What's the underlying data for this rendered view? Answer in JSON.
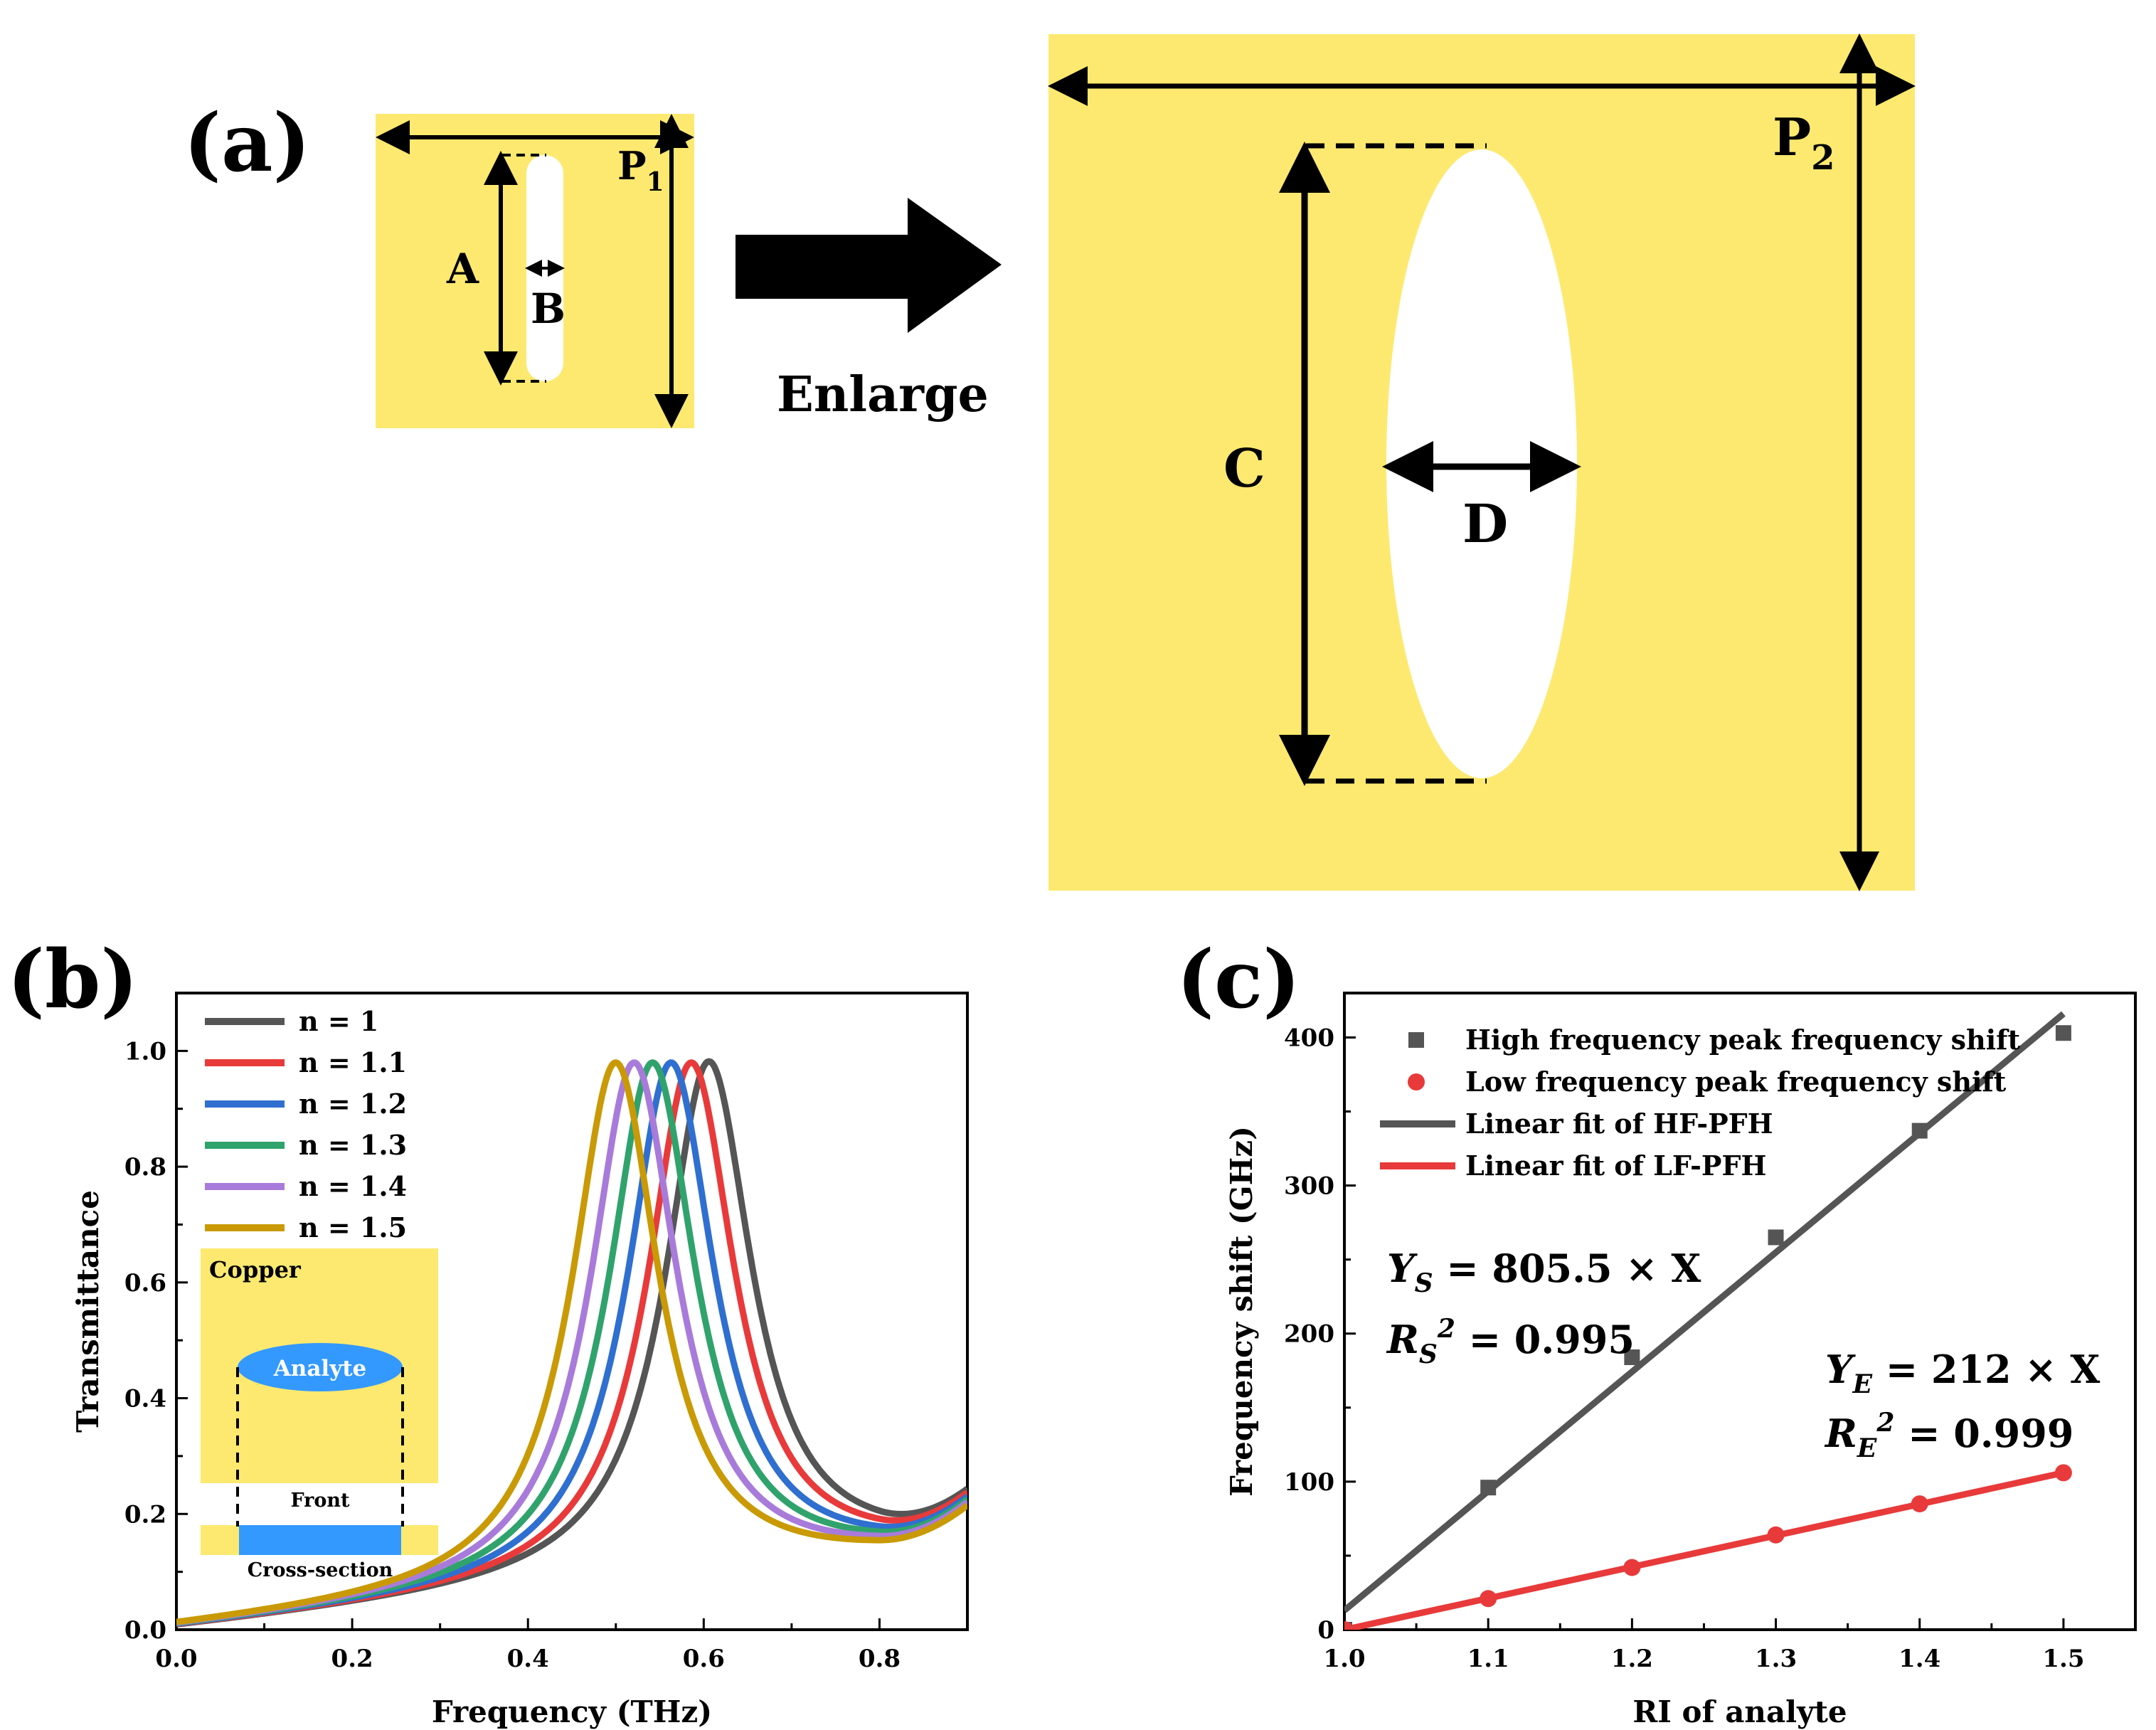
{
  "panel_a": {
    "label": "(a)",
    "small_cell": {
      "period_label": "P",
      "period_sub": "1",
      "length_label": "A",
      "width_label": "B"
    },
    "arrow_label": "Enlarge",
    "large_cell": {
      "period_label": "P",
      "period_sub": "2",
      "length_label": "C",
      "width_label": "D"
    },
    "colors": {
      "copper": "#FDE96F",
      "hole": "#FFFFFF",
      "lines": "#000000"
    }
  },
  "panel_b": {
    "label": "(b)",
    "inset": {
      "copper_label": "Copper",
      "analyte_label": "Analyte",
      "front_label": "Front",
      "cross_section_label": "Cross-section",
      "colors": {
        "copper": "#FDE96F",
        "analyte": "#3399FF"
      }
    }
  },
  "panel_c": {
    "label": "(c)",
    "eq_s": {
      "main": "Y",
      "sub": "S",
      "rhs": " = 805.5 × X"
    },
    "r2_s": {
      "main": "R",
      "sub": "S",
      "sup": "2",
      "rhs": " = 0.995"
    },
    "eq_e": {
      "main": "Y",
      "sub": "E",
      "rhs": " = 212 × X"
    },
    "r2_e": {
      "main": "R",
      "sub": "E",
      "sup": "2",
      "rhs": " = 0.999"
    }
  },
  "chart_data": [
    {
      "id": "b",
      "type": "line",
      "title": "",
      "xlabel": "Frequency (THz)",
      "ylabel": "Transmittance",
      "xlim": [
        0,
        0.9
      ],
      "ylim": [
        0,
        1.1
      ],
      "xticks": [
        0.0,
        0.2,
        0.4,
        0.6,
        0.8
      ],
      "yticks": [
        0.0,
        0.2,
        0.4,
        0.6,
        0.8,
        1.0
      ],
      "x_tick_labels": [
        "0.0",
        "0.2",
        "0.4",
        "0.6",
        "0.8"
      ],
      "y_tick_labels": [
        "0.0",
        "0.2",
        "0.4",
        "0.6",
        "0.8",
        "1.0"
      ],
      "legend": "top-left",
      "grid": false,
      "series": [
        {
          "name": "n = 1",
          "color": "#555555",
          "peak_freq": 0.606,
          "peak_value": 0.982,
          "end_value": 0.195,
          "min_value": 0.195
        },
        {
          "name": "n = 1.1",
          "color": "#E83A3A",
          "peak_freq": 0.586,
          "peak_value": 0.98,
          "end_value": 0.193,
          "min_value": 0.185
        },
        {
          "name": "n = 1.2",
          "color": "#2F6FD0",
          "peak_freq": 0.563,
          "peak_value": 0.98,
          "end_value": 0.19,
          "min_value": 0.178
        },
        {
          "name": "n = 1.3",
          "color": "#30A36C",
          "peak_freq": 0.542,
          "peak_value": 0.98,
          "end_value": 0.188,
          "min_value": 0.17
        },
        {
          "name": "n = 1.4",
          "color": "#A87BDB",
          "peak_freq": 0.521,
          "peak_value": 0.98,
          "end_value": 0.186,
          "min_value": 0.163
        },
        {
          "name": "n = 1.5",
          "color": "#C99A06",
          "peak_freq": 0.5,
          "peak_value": 0.98,
          "end_value": 0.182,
          "min_value": 0.155
        }
      ]
    },
    {
      "id": "c",
      "type": "scatter",
      "title": "",
      "xlabel": "RI of analyte",
      "ylabel": "Frequency shift (GHz)",
      "xlim": [
        1.0,
        1.55
      ],
      "ylim": [
        0,
        430
      ],
      "xticks": [
        1.0,
        1.1,
        1.2,
        1.3,
        1.4,
        1.5
      ],
      "yticks": [
        0,
        100,
        200,
        300,
        400
      ],
      "x_tick_labels": [
        "1.0",
        "1.1",
        "1.2",
        "1.3",
        "1.4",
        "1.5"
      ],
      "y_tick_labels": [
        "0",
        "100",
        "200",
        "300",
        "400"
      ],
      "legend": "top-left",
      "grid": false,
      "x": [
        1.0,
        1.1,
        1.2,
        1.3,
        1.4,
        1.5
      ],
      "series": [
        {
          "name": "High frequency peak frequency shift",
          "marker": "square",
          "color": "#555555",
          "values": [
            0,
            96,
            184,
            265,
            337,
            403
          ]
        },
        {
          "name": "Low frequency peak frequency shift",
          "marker": "circle",
          "color": "#E83A3A",
          "values": [
            0,
            21,
            42,
            64,
            85,
            106
          ]
        },
        {
          "name": "Linear fit of HF-PFH",
          "marker": "line",
          "color": "#555555",
          "x_range": [
            1.0,
            1.5
          ],
          "y_range": [
            13,
            416
          ]
        },
        {
          "name": "Linear fit of LF-PFH",
          "marker": "line",
          "color": "#E83A3A",
          "x_range": [
            1.0,
            1.5
          ],
          "y_range": [
            0,
            106
          ]
        }
      ]
    }
  ]
}
